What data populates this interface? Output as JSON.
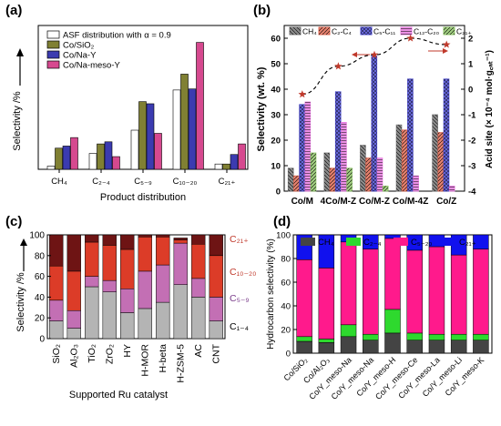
{
  "figure": {
    "panels": [
      "(a)",
      "(b)",
      "(c)",
      "(d)"
    ]
  },
  "chart_data": [
    {
      "panel": "(a)",
      "type": "bar",
      "xlabel": "Product distribution",
      "ylabel": "Selectivity /%",
      "ylabel_arrow": true,
      "categories": [
        "CH₄",
        "C₂₋₄",
        "C₅₋₉",
        "C₁₀₋₂₀",
        "C₂₁₊"
      ],
      "ylim": [
        0,
        68
      ],
      "legend_position": "top-left",
      "series": [
        {
          "name": "ASF distribution with α = 0.9",
          "color": "#ffffff",
          "values": [
            1.5,
            7.5,
            18.5,
            37.5,
            2.5
          ]
        },
        {
          "name": "Co/SiO₂",
          "color": "#808033",
          "values": [
            10,
            12,
            32,
            45,
            2.5
          ]
        },
        {
          "name": "Co/Na-Y",
          "color": "#3b3bb0",
          "values": [
            11,
            13,
            31,
            38,
            7
          ]
        },
        {
          "name": "Co/Na-meso-Y",
          "color": "#d6498f",
          "values": [
            15,
            6,
            17,
            60,
            12
          ]
        }
      ]
    },
    {
      "panel": "(b)",
      "type": "bar",
      "ylabel": "Selectivity (wt. %)",
      "ylabel_right": "Acid site (× 10⁻⁴ mol·g꜀ₐₜ⁻¹)",
      "categories": [
        "Co/M",
        "4Co/M-Z",
        "Co/M-Z",
        "Co/M-4Z",
        "Co/Z"
      ],
      "ylim": [
        0,
        65
      ],
      "ylim_right": [
        -4,
        2.5
      ],
      "yticks": [
        0,
        10,
        20,
        30,
        40,
        50,
        60
      ],
      "yticks_right": [
        -4,
        -3,
        -2,
        -1,
        0,
        1,
        2
      ],
      "legend_position": "top",
      "series": [
        {
          "name": "CH₄",
          "color": "#777777",
          "pattern": "diag-back",
          "values": [
            9,
            15,
            18,
            26,
            30
          ]
        },
        {
          "name": "C₂-C₄",
          "color": "#e06b55",
          "pattern": "diag",
          "values": [
            6,
            9,
            13,
            24,
            23
          ]
        },
        {
          "name": "C₅-C₁₁",
          "color": "#4a4ad0",
          "pattern": "cross",
          "values": [
            34,
            39,
            53,
            44,
            44
          ]
        },
        {
          "name": "C₁₂-C₂₀",
          "color": "#e87de0",
          "pattern": "horiz",
          "values": [
            35,
            27,
            13,
            6,
            2
          ]
        },
        {
          "name": "C₂₁₊",
          "color": "#8fc46a",
          "pattern": "diag",
          "values": [
            15,
            9,
            2,
            0,
            0
          ]
        }
      ],
      "acid_site": {
        "values": [
          -0.2,
          0.9,
          1.35,
          2.0,
          1.75
        ],
        "color": "#c0392b",
        "style": "dashed-line-with-stars"
      }
    },
    {
      "panel": "(c)",
      "type": "bar",
      "stacked": true,
      "xlabel": "Supported Ru catalyst",
      "ylabel": "Selectivity /%",
      "ylabel_arrow": true,
      "categories": [
        "SiO₂",
        "Al₂O₃",
        "TiO₂",
        "ZrO₂",
        "HY",
        "H-MOR",
        "H-beta",
        "H-ZSM-5",
        "AC",
        "CNT"
      ],
      "ylim": [
        0,
        100
      ],
      "yticks": [
        0,
        20,
        40,
        60,
        80,
        100
      ],
      "series_labels": [
        "C₁₋₄",
        "C₅₋₉",
        "C₁₀₋₂₀",
        "C₂₁₊"
      ],
      "series": [
        {
          "name": "C₁₋₄",
          "color": "#b4b4b4",
          "values": [
            17,
            10,
            50,
            45,
            25,
            29,
            35,
            52,
            40,
            17
          ]
        },
        {
          "name": "C₅₋₉",
          "color": "#c36fb4",
          "values": [
            20,
            17,
            10,
            11,
            23,
            36,
            36,
            40,
            18,
            23
          ]
        },
        {
          "name": "C₁₀₋₂₀",
          "color": "#dc3c28",
          "values": [
            33,
            38,
            33,
            34,
            38,
            33,
            27,
            3,
            33,
            40
          ]
        },
        {
          "name": "C₂₁₊",
          "color": "#6e1414",
          "values": [
            30,
            35,
            7,
            10,
            14,
            2,
            2,
            2,
            9,
            20
          ]
        }
      ]
    },
    {
      "panel": "(d)",
      "type": "bar",
      "stacked": true,
      "ylabel": "Hydrocarbon selectivity (%)",
      "categories": [
        "Co/SiO₂",
        "Co/Al₂O₃",
        "Co/Y_meso-Na",
        "Co/Y_meso-Na",
        "Co/Y_meso-H",
        "Co/Y_meso-Ce",
        "Co/Y_meso-La",
        "Co/Y_meso-Li",
        "Co/Y_meso-K"
      ],
      "ylim": [
        0,
        100
      ],
      "yticks": [
        0,
        20,
        40,
        60,
        80,
        100
      ],
      "legend_position": "top",
      "series": [
        {
          "name": "CH₄",
          "color": "#444444",
          "values": [
            10,
            9,
            14,
            11,
            17,
            11,
            11,
            11,
            11
          ]
        },
        {
          "name": "C₂₋₄",
          "color": "#2ed92e",
          "values": [
            4,
            3,
            10,
            5,
            20,
            6,
            5,
            5,
            5
          ]
        },
        {
          "name": "C₅₋₂₀",
          "color": "#ff1a8c",
          "values": [
            65,
            60,
            70,
            72,
            60,
            70,
            74,
            67,
            72
          ]
        },
        {
          "name": "C₂₁₊",
          "color": "#1111ee",
          "values": [
            21,
            28,
            6,
            12,
            3,
            13,
            10,
            17,
            12
          ]
        }
      ]
    }
  ]
}
